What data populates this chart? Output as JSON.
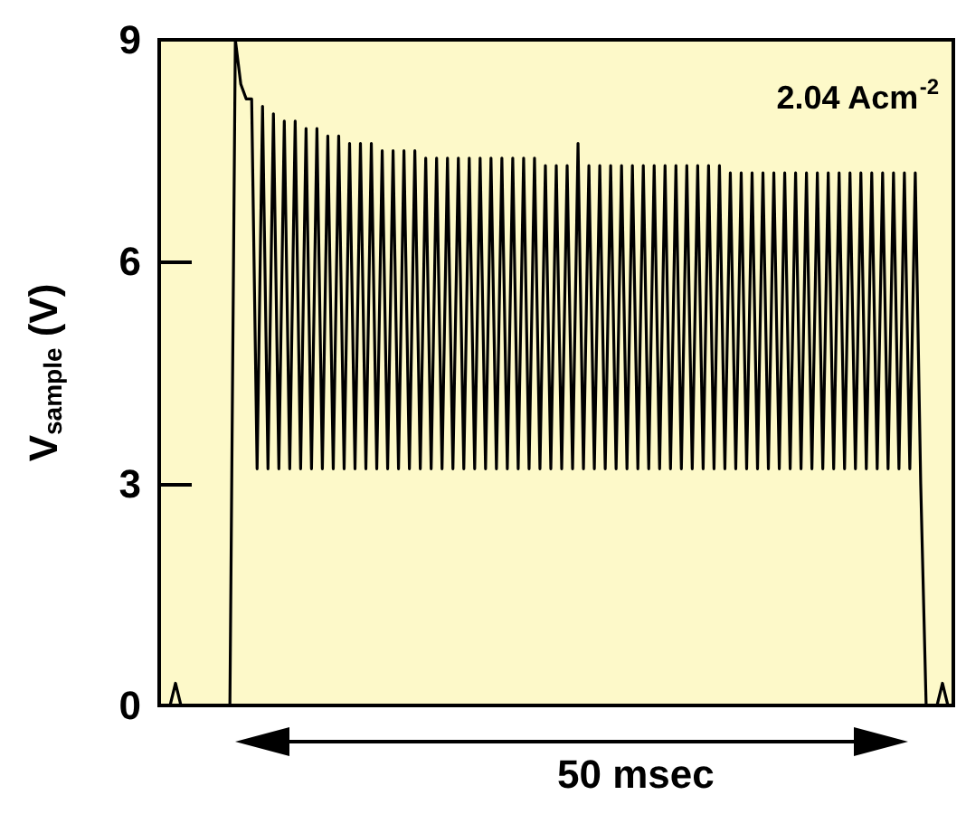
{
  "chart_data": {
    "type": "line",
    "ylabel": "V$_{sample}$ (V)",
    "annotations": [
      "2.04 Acm$^{-2}$",
      "50 msec"
    ],
    "categories": [
      null,
      null,
      null,
      null,
      null,
      null,
      null,
      null,
      null,
      null,
      null,
      null,
      null,
      null,
      null,
      null,
      null,
      null,
      null,
      null,
      null,
      null,
      null,
      null,
      null,
      null,
      null,
      null,
      null,
      null,
      null,
      null,
      null,
      null,
      null,
      null,
      null,
      null,
      null,
      null,
      null,
      null,
      null,
      null,
      null,
      null,
      null,
      null,
      null,
      null,
      null,
      null,
      null,
      null,
      null,
      null,
      null,
      null,
      null,
      null,
      null,
      null,
      null,
      null,
      null,
      null,
      null,
      null,
      null,
      null,
      null,
      null,
      null,
      null,
      null,
      null,
      null,
      null,
      null,
      null,
      null,
      null,
      null,
      null,
      null,
      null,
      null,
      null,
      null,
      null,
      null,
      null,
      null,
      null,
      null,
      null,
      null,
      null,
      null,
      null,
      null,
      null,
      null,
      null,
      null,
      null,
      null,
      null,
      null,
      null,
      null,
      null,
      null,
      null,
      null,
      null,
      null,
      null,
      null,
      null,
      null,
      null,
      null,
      null,
      null,
      null,
      null,
      null,
      null,
      null,
      null,
      null,
      null,
      null,
      null,
      null,
      null,
      null,
      null,
      null,
      null,
      null,
      null,
      null,
      null,
      null,
      null
    ],
    "series": [
      {
        "color": "#000000",
        "values": [
          0,
          0,
          0,
          0.3,
          0,
          0,
          0,
          0,
          0,
          0,
          0,
          0,
          0,
          0,
          9.0,
          8.4,
          8.2,
          8.2,
          3.2,
          8.1,
          3.2,
          8.0,
          3.2,
          7.9,
          3.2,
          7.9,
          3.2,
          7.8,
          3.2,
          7.8,
          3.2,
          7.7,
          3.2,
          7.7,
          3.2,
          7.6,
          3.2,
          7.6,
          3.2,
          7.6,
          3.2,
          7.5,
          3.2,
          7.5,
          3.2,
          7.5,
          3.2,
          7.5,
          3.2,
          7.4,
          3.2,
          7.4,
          3.2,
          7.4,
          3.2,
          7.4,
          3.2,
          7.4,
          3.2,
          7.4,
          3.2,
          7.4,
          3.2,
          7.4,
          3.2,
          7.4,
          3.2,
          7.4,
          3.2,
          7.4,
          3.2,
          7.3,
          3.2,
          7.3,
          3.2,
          7.3,
          3.2,
          7.6,
          3.2,
          7.3,
          3.2,
          7.3,
          3.2,
          7.3,
          3.2,
          7.3,
          3.2,
          7.3,
          3.2,
          7.3,
          3.2,
          7.3,
          3.2,
          7.3,
          3.2,
          7.3,
          3.2,
          7.3,
          3.2,
          7.3,
          3.2,
          7.3,
          3.2,
          7.3,
          3.2,
          7.2,
          3.2,
          7.2,
          3.2,
          7.2,
          3.2,
          7.2,
          3.2,
          7.2,
          3.2,
          7.2,
          3.2,
          7.2,
          3.2,
          7.2,
          3.2,
          7.2,
          3.2,
          7.2,
          3.2,
          7.2,
          3.2,
          7.2,
          3.2,
          7.2,
          3.2,
          7.2,
          3.2,
          7.2,
          3.2,
          7.2,
          3.2,
          7.2,
          3.2,
          7.2,
          3.0,
          0,
          0,
          0,
          0.3,
          0,
          0
        ]
      }
    ],
    "ylim": [
      0,
      9
    ],
    "yticks": [
      0,
      3,
      6,
      9
    ],
    "tick_labels": "y",
    "grid": false,
    "line_style": "solid"
  }
}
